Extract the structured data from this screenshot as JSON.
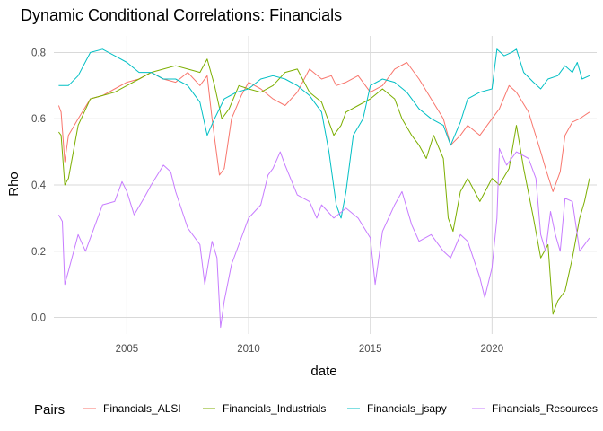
{
  "chart_data": {
    "type": "line",
    "title": "Dynamic Conditional Correlations: Financials",
    "xlabel": "date",
    "ylabel": "Rho",
    "xlim": [
      2002.0,
      2024.3
    ],
    "ylim": [
      -0.05,
      0.85
    ],
    "x_ticks": [
      2005,
      2010,
      2015,
      2020
    ],
    "x_tick_labels": [
      "2005",
      "2010",
      "2015",
      "2020"
    ],
    "y_ticks": [
      0.0,
      0.2,
      0.4,
      0.6,
      0.8
    ],
    "y_tick_labels": [
      "0.0",
      "0.2",
      "0.4",
      "0.6",
      "0.8"
    ],
    "grid": true,
    "legend": {
      "title": "Pairs",
      "position": "bottom"
    },
    "series": [
      {
        "name": "Financials_ALSI",
        "color": "#F8766D",
        "points": [
          [
            2002.2,
            0.64
          ],
          [
            2002.3,
            0.62
          ],
          [
            2002.45,
            0.47
          ],
          [
            2002.6,
            0.55
          ],
          [
            2003.0,
            0.6
          ],
          [
            2003.5,
            0.66
          ],
          [
            2004.0,
            0.67
          ],
          [
            2004.5,
            0.69
          ],
          [
            2005.0,
            0.71
          ],
          [
            2005.5,
            0.72
          ],
          [
            2006.0,
            0.74
          ],
          [
            2006.5,
            0.72
          ],
          [
            2007.0,
            0.71
          ],
          [
            2007.5,
            0.74
          ],
          [
            2008.0,
            0.7
          ],
          [
            2008.3,
            0.73
          ],
          [
            2008.5,
            0.6
          ],
          [
            2008.8,
            0.43
          ],
          [
            2009.0,
            0.45
          ],
          [
            2009.3,
            0.6
          ],
          [
            2009.7,
            0.67
          ],
          [
            2010.0,
            0.71
          ],
          [
            2010.5,
            0.69
          ],
          [
            2011.0,
            0.66
          ],
          [
            2011.5,
            0.64
          ],
          [
            2012.0,
            0.68
          ],
          [
            2012.5,
            0.75
          ],
          [
            2013.0,
            0.72
          ],
          [
            2013.4,
            0.73
          ],
          [
            2013.6,
            0.7
          ],
          [
            2014.0,
            0.71
          ],
          [
            2014.5,
            0.73
          ],
          [
            2015.0,
            0.68
          ],
          [
            2015.5,
            0.7
          ],
          [
            2016.0,
            0.75
          ],
          [
            2016.5,
            0.77
          ],
          [
            2017.0,
            0.72
          ],
          [
            2017.5,
            0.66
          ],
          [
            2018.0,
            0.6
          ],
          [
            2018.3,
            0.52
          ],
          [
            2018.7,
            0.55
          ],
          [
            2019.0,
            0.58
          ],
          [
            2019.5,
            0.55
          ],
          [
            2020.0,
            0.6
          ],
          [
            2020.3,
            0.63
          ],
          [
            2020.7,
            0.7
          ],
          [
            2021.0,
            0.68
          ],
          [
            2021.5,
            0.62
          ],
          [
            2022.0,
            0.5
          ],
          [
            2022.2,
            0.45
          ],
          [
            2022.5,
            0.38
          ],
          [
            2022.8,
            0.44
          ],
          [
            2023.0,
            0.55
          ],
          [
            2023.3,
            0.59
          ],
          [
            2023.6,
            0.6
          ],
          [
            2023.8,
            0.61
          ],
          [
            2024.0,
            0.62
          ]
        ]
      },
      {
        "name": "Financials_Industrials",
        "color": "#7CAE00",
        "points": [
          [
            2002.2,
            0.56
          ],
          [
            2002.3,
            0.55
          ],
          [
            2002.45,
            0.4
          ],
          [
            2002.6,
            0.42
          ],
          [
            2003.0,
            0.58
          ],
          [
            2003.5,
            0.66
          ],
          [
            2004.0,
            0.67
          ],
          [
            2004.5,
            0.68
          ],
          [
            2005.0,
            0.7
          ],
          [
            2005.5,
            0.72
          ],
          [
            2006.0,
            0.74
          ],
          [
            2006.5,
            0.75
          ],
          [
            2007.0,
            0.76
          ],
          [
            2007.5,
            0.75
          ],
          [
            2008.0,
            0.74
          ],
          [
            2008.3,
            0.78
          ],
          [
            2008.6,
            0.7
          ],
          [
            2008.9,
            0.6
          ],
          [
            2009.2,
            0.63
          ],
          [
            2009.6,
            0.7
          ],
          [
            2010.0,
            0.69
          ],
          [
            2010.5,
            0.68
          ],
          [
            2011.0,
            0.7
          ],
          [
            2011.5,
            0.74
          ],
          [
            2012.0,
            0.75
          ],
          [
            2012.5,
            0.68
          ],
          [
            2013.0,
            0.65
          ],
          [
            2013.5,
            0.55
          ],
          [
            2013.8,
            0.58
          ],
          [
            2014.0,
            0.62
          ],
          [
            2014.5,
            0.64
          ],
          [
            2015.0,
            0.66
          ],
          [
            2015.5,
            0.69
          ],
          [
            2016.0,
            0.66
          ],
          [
            2016.3,
            0.6
          ],
          [
            2016.7,
            0.55
          ],
          [
            2017.0,
            0.52
          ],
          [
            2017.3,
            0.48
          ],
          [
            2017.6,
            0.55
          ],
          [
            2018.0,
            0.48
          ],
          [
            2018.2,
            0.3
          ],
          [
            2018.4,
            0.26
          ],
          [
            2018.7,
            0.38
          ],
          [
            2019.0,
            0.42
          ],
          [
            2019.5,
            0.35
          ],
          [
            2020.0,
            0.42
          ],
          [
            2020.3,
            0.4
          ],
          [
            2020.7,
            0.45
          ],
          [
            2021.0,
            0.58
          ],
          [
            2021.3,
            0.45
          ],
          [
            2021.7,
            0.3
          ],
          [
            2022.0,
            0.18
          ],
          [
            2022.3,
            0.22
          ],
          [
            2022.5,
            0.01
          ],
          [
            2022.7,
            0.05
          ],
          [
            2023.0,
            0.08
          ],
          [
            2023.3,
            0.18
          ],
          [
            2023.6,
            0.3
          ],
          [
            2023.8,
            0.35
          ],
          [
            2024.0,
            0.42
          ]
        ]
      },
      {
        "name": "Financials_jsapy",
        "color": "#00BFC4",
        "points": [
          [
            2002.2,
            0.7
          ],
          [
            2002.6,
            0.7
          ],
          [
            2003.0,
            0.73
          ],
          [
            2003.5,
            0.8
          ],
          [
            2004.0,
            0.81
          ],
          [
            2004.5,
            0.79
          ],
          [
            2005.0,
            0.77
          ],
          [
            2005.5,
            0.74
          ],
          [
            2006.0,
            0.74
          ],
          [
            2006.5,
            0.72
          ],
          [
            2007.0,
            0.72
          ],
          [
            2007.5,
            0.7
          ],
          [
            2008.0,
            0.65
          ],
          [
            2008.3,
            0.55
          ],
          [
            2008.6,
            0.6
          ],
          [
            2009.0,
            0.66
          ],
          [
            2009.5,
            0.68
          ],
          [
            2010.0,
            0.69
          ],
          [
            2010.5,
            0.72
          ],
          [
            2011.0,
            0.73
          ],
          [
            2011.5,
            0.72
          ],
          [
            2012.0,
            0.7
          ],
          [
            2012.5,
            0.67
          ],
          [
            2013.0,
            0.62
          ],
          [
            2013.3,
            0.5
          ],
          [
            2013.6,
            0.34
          ],
          [
            2013.8,
            0.3
          ],
          [
            2014.0,
            0.38
          ],
          [
            2014.3,
            0.55
          ],
          [
            2014.7,
            0.6
          ],
          [
            2015.0,
            0.7
          ],
          [
            2015.5,
            0.72
          ],
          [
            2016.0,
            0.71
          ],
          [
            2016.5,
            0.68
          ],
          [
            2017.0,
            0.63
          ],
          [
            2017.5,
            0.6
          ],
          [
            2018.0,
            0.58
          ],
          [
            2018.3,
            0.52
          ],
          [
            2018.7,
            0.59
          ],
          [
            2019.0,
            0.66
          ],
          [
            2019.5,
            0.68
          ],
          [
            2020.0,
            0.69
          ],
          [
            2020.2,
            0.81
          ],
          [
            2020.5,
            0.79
          ],
          [
            2020.8,
            0.8
          ],
          [
            2021.0,
            0.81
          ],
          [
            2021.3,
            0.74
          ],
          [
            2021.7,
            0.71
          ],
          [
            2022.0,
            0.69
          ],
          [
            2022.3,
            0.72
          ],
          [
            2022.7,
            0.73
          ],
          [
            2023.0,
            0.76
          ],
          [
            2023.3,
            0.74
          ],
          [
            2023.5,
            0.77
          ],
          [
            2023.7,
            0.72
          ],
          [
            2024.0,
            0.73
          ]
        ]
      },
      {
        "name": "Financials_Resources",
        "color": "#C77CFF",
        "points": [
          [
            2002.2,
            0.31
          ],
          [
            2002.35,
            0.29
          ],
          [
            2002.45,
            0.1
          ],
          [
            2002.6,
            0.14
          ],
          [
            2003.0,
            0.25
          ],
          [
            2003.3,
            0.2
          ],
          [
            2003.7,
            0.28
          ],
          [
            2004.0,
            0.34
          ],
          [
            2004.5,
            0.35
          ],
          [
            2004.8,
            0.41
          ],
          [
            2005.0,
            0.38
          ],
          [
            2005.3,
            0.31
          ],
          [
            2005.7,
            0.36
          ],
          [
            2006.0,
            0.4
          ],
          [
            2006.5,
            0.46
          ],
          [
            2006.8,
            0.44
          ],
          [
            2007.0,
            0.38
          ],
          [
            2007.5,
            0.27
          ],
          [
            2008.0,
            0.22
          ],
          [
            2008.2,
            0.1
          ],
          [
            2008.5,
            0.23
          ],
          [
            2008.7,
            0.18
          ],
          [
            2008.85,
            -0.03
          ],
          [
            2009.0,
            0.05
          ],
          [
            2009.3,
            0.16
          ],
          [
            2009.7,
            0.24
          ],
          [
            2010.0,
            0.3
          ],
          [
            2010.5,
            0.34
          ],
          [
            2010.8,
            0.43
          ],
          [
            2011.0,
            0.45
          ],
          [
            2011.3,
            0.5
          ],
          [
            2011.5,
            0.46
          ],
          [
            2012.0,
            0.37
          ],
          [
            2012.5,
            0.35
          ],
          [
            2012.8,
            0.3
          ],
          [
            2013.0,
            0.34
          ],
          [
            2013.5,
            0.3
          ],
          [
            2014.0,
            0.33
          ],
          [
            2014.5,
            0.3
          ],
          [
            2015.0,
            0.24
          ],
          [
            2015.2,
            0.1
          ],
          [
            2015.5,
            0.26
          ],
          [
            2016.0,
            0.34
          ],
          [
            2016.3,
            0.38
          ],
          [
            2016.7,
            0.28
          ],
          [
            2017.0,
            0.23
          ],
          [
            2017.5,
            0.25
          ],
          [
            2018.0,
            0.2
          ],
          [
            2018.3,
            0.18
          ],
          [
            2018.7,
            0.25
          ],
          [
            2019.0,
            0.23
          ],
          [
            2019.5,
            0.12
          ],
          [
            2019.7,
            0.06
          ],
          [
            2020.0,
            0.15
          ],
          [
            2020.2,
            0.3
          ],
          [
            2020.3,
            0.51
          ],
          [
            2020.6,
            0.46
          ],
          [
            2021.0,
            0.5
          ],
          [
            2021.5,
            0.48
          ],
          [
            2021.8,
            0.42
          ],
          [
            2022.0,
            0.25
          ],
          [
            2022.2,
            0.2
          ],
          [
            2022.4,
            0.32
          ],
          [
            2022.6,
            0.25
          ],
          [
            2022.8,
            0.2
          ],
          [
            2023.0,
            0.36
          ],
          [
            2023.3,
            0.35
          ],
          [
            2023.6,
            0.2
          ],
          [
            2023.8,
            0.22
          ],
          [
            2024.0,
            0.24
          ]
        ]
      }
    ]
  }
}
